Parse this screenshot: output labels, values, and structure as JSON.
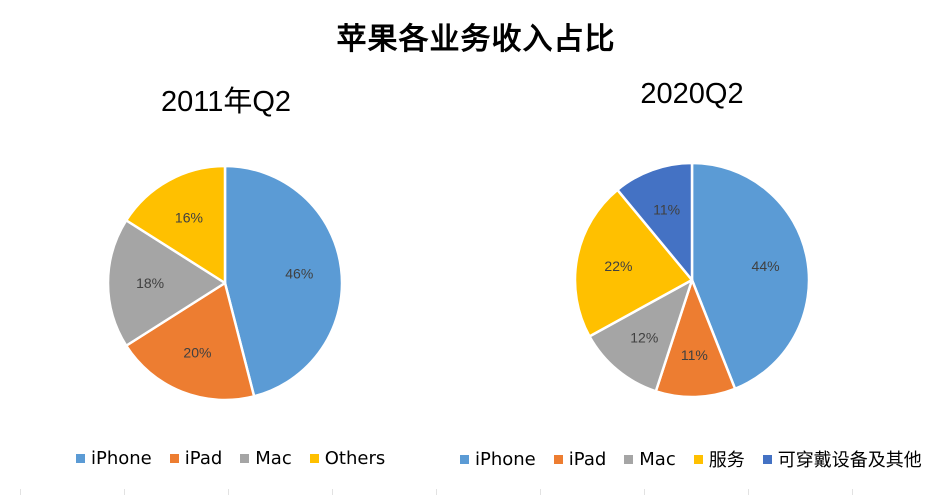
{
  "page": {
    "title": "苹果各业务收入占比"
  },
  "chart_data": [
    {
      "type": "pie",
      "title": "2011年Q2",
      "categories": [
        "iPhone",
        "iPad",
        "Mac",
        "Others"
      ],
      "values": [
        46,
        20,
        18,
        16
      ],
      "data_labels": [
        "46%",
        "20%",
        "18%",
        "16%"
      ],
      "colors": [
        "#5B9BD5",
        "#ED7D31",
        "#A5A5A5",
        "#FFC000"
      ],
      "legend": "bottom"
    },
    {
      "type": "pie",
      "title": "2020Q2",
      "categories": [
        "iPhone",
        "iPad",
        "Mac",
        "服务",
        "可穿戴设备及其他"
      ],
      "values": [
        44,
        11,
        12,
        22,
        11
      ],
      "data_labels": [
        "44%",
        "11%",
        "12%",
        "22%",
        "11%"
      ],
      "colors": [
        "#5B9BD5",
        "#ED7D31",
        "#A5A5A5",
        "#FFC000",
        "#4472C4"
      ],
      "legend": "bottom"
    }
  ]
}
